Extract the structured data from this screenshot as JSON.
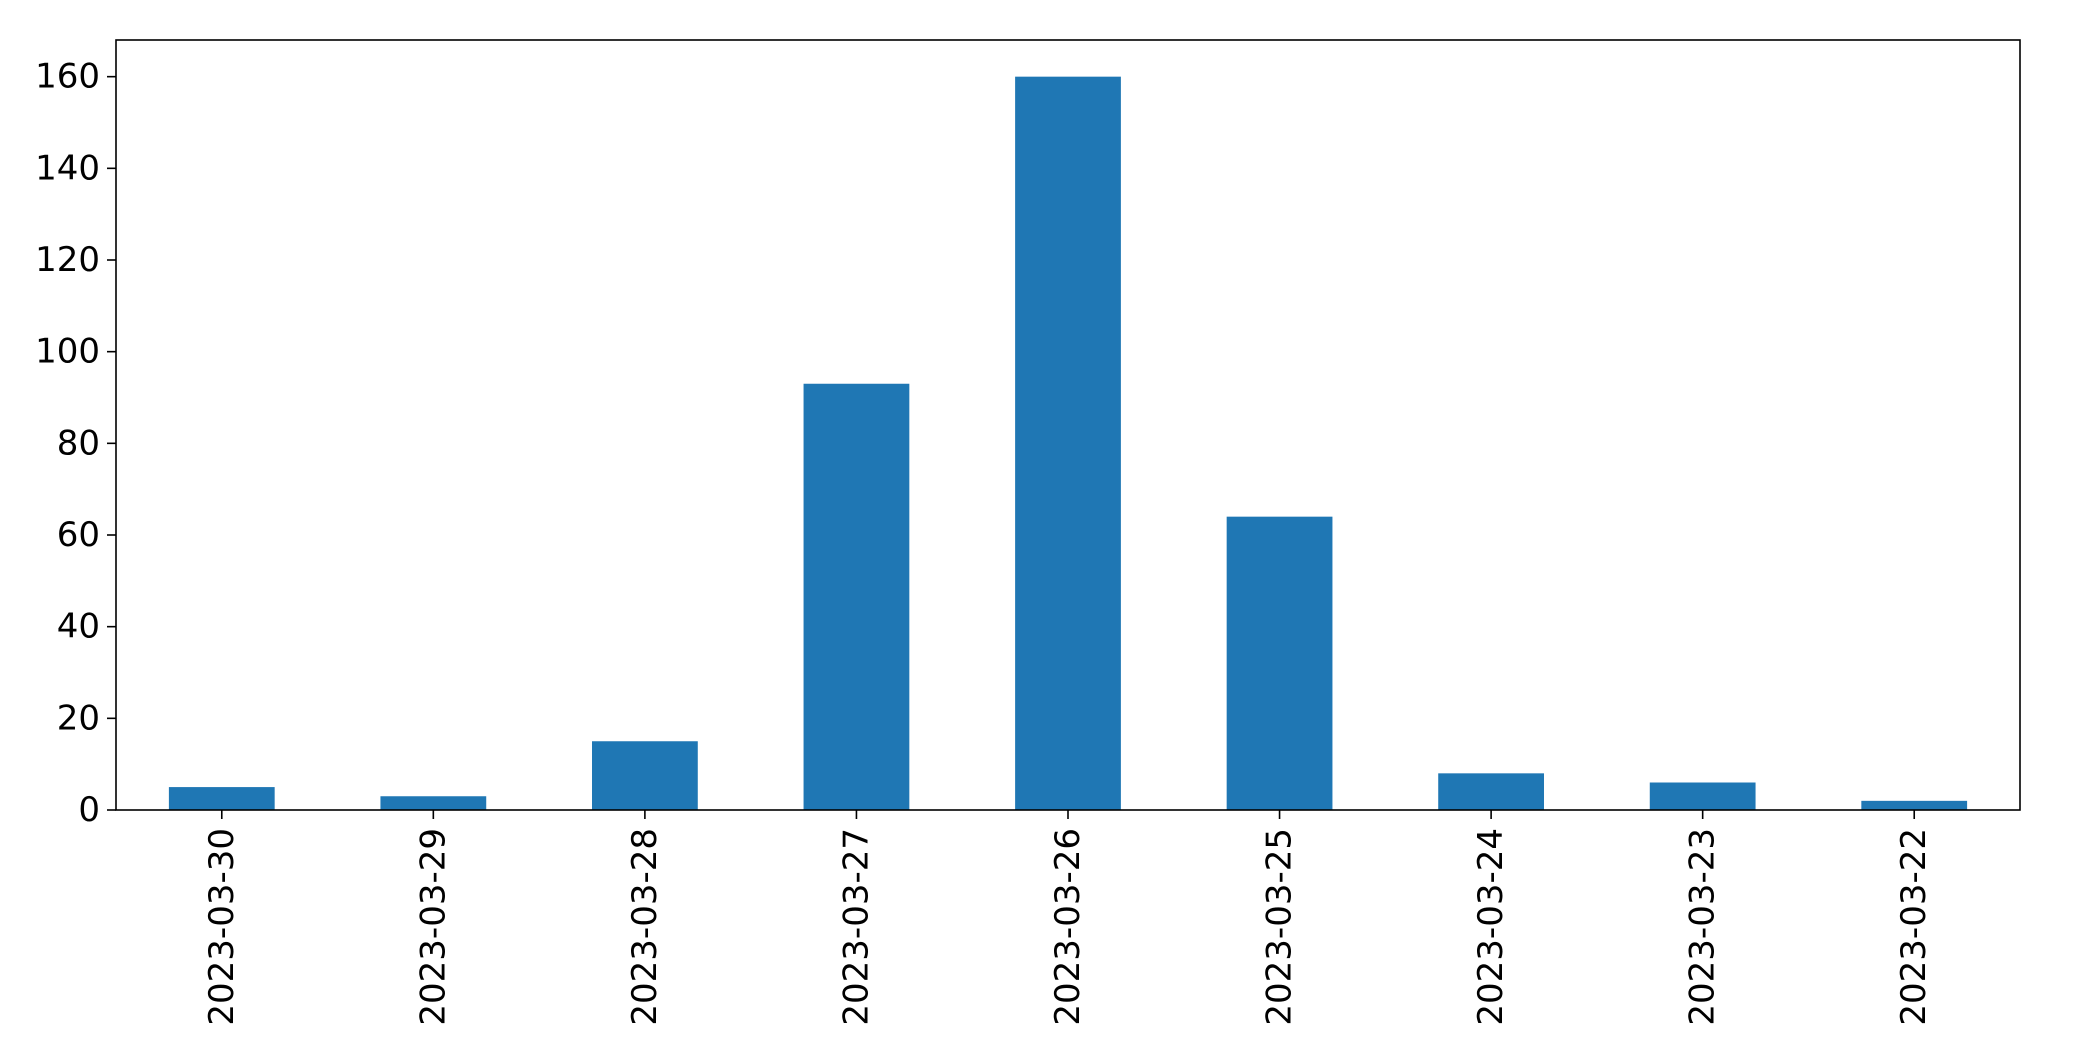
{
  "chart_data": {
    "type": "bar",
    "title": "",
    "xlabel": "",
    "ylabel": "",
    "categories": [
      "2023-03-30",
      "2023-03-29",
      "2023-03-28",
      "2023-03-27",
      "2023-03-26",
      "2023-03-25",
      "2023-03-24",
      "2023-03-23",
      "2023-03-22"
    ],
    "values": [
      5,
      3,
      15,
      93,
      160,
      64,
      8,
      6,
      2
    ],
    "ylim": [
      0,
      168
    ],
    "yticks": [
      0,
      20,
      40,
      60,
      80,
      100,
      120,
      140,
      160
    ],
    "grid": false,
    "legend": "none",
    "bar_color": "#1f77b4"
  }
}
